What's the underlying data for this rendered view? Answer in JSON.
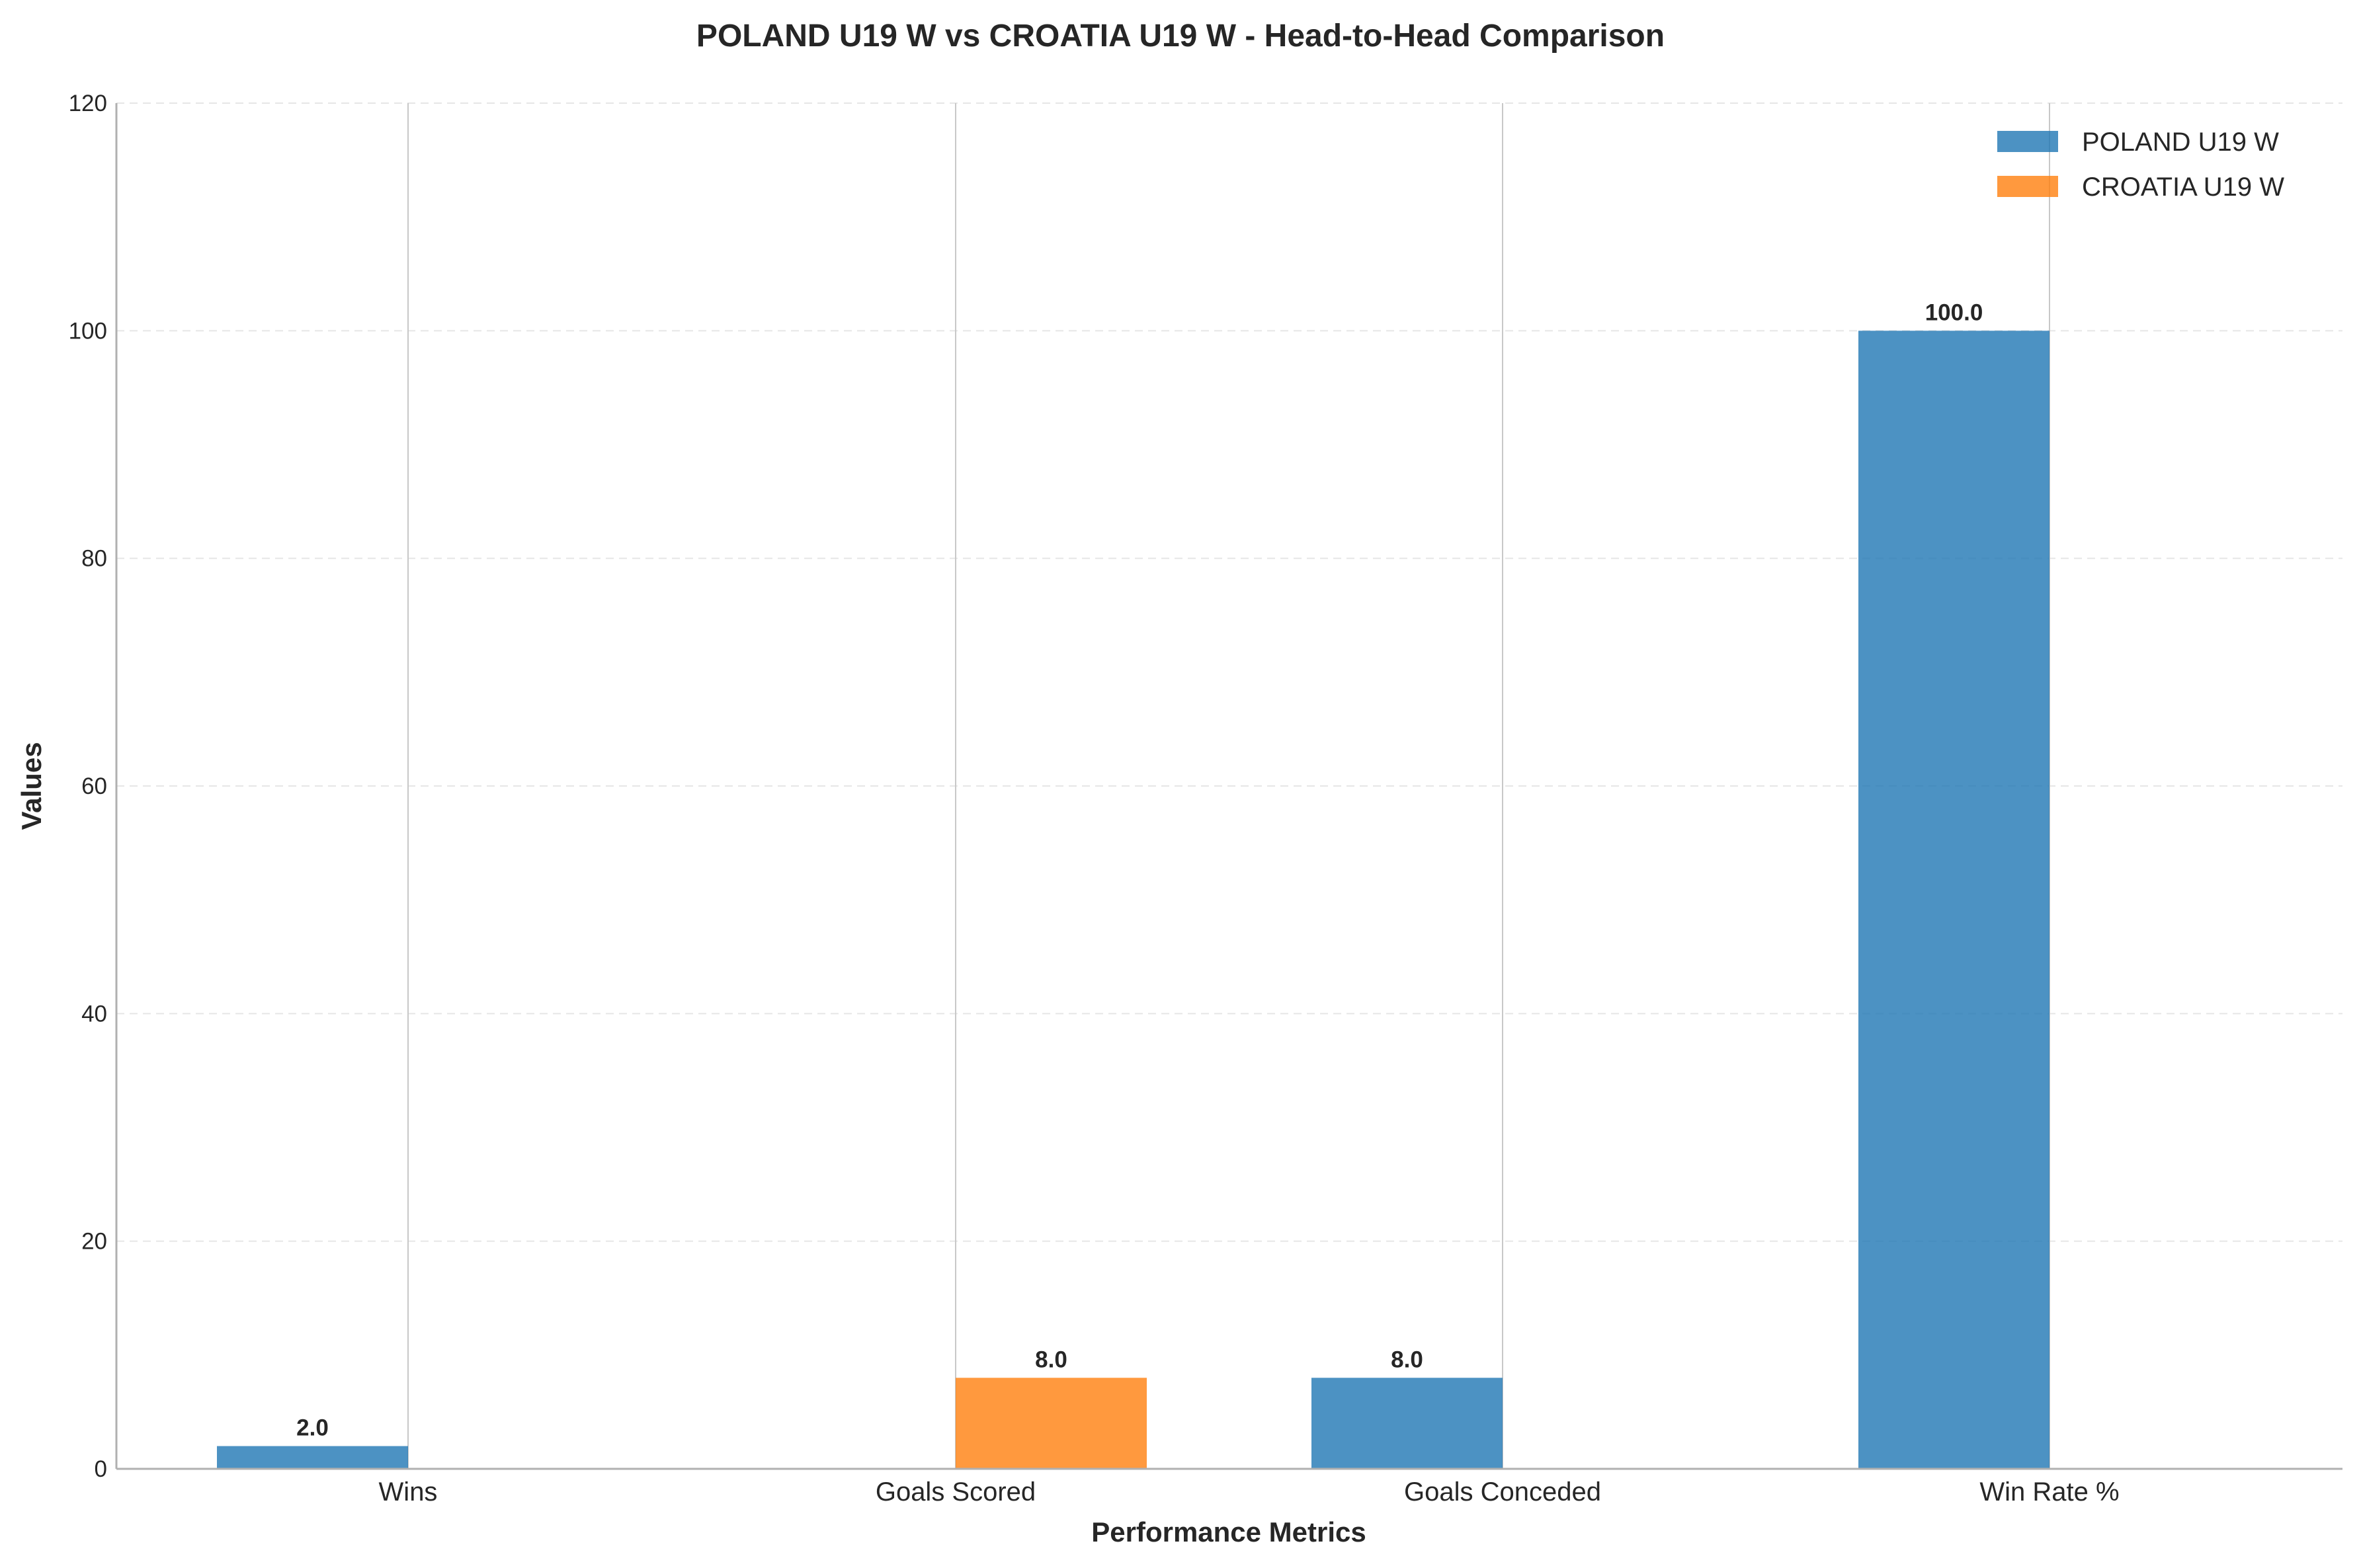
{
  "chart_data": {
    "type": "bar",
    "title": "POLAND U19 W vs CROATIA U19 W - Head-to-Head Comparison",
    "xlabel": "Performance Metrics",
    "ylabel": "Values",
    "categories": [
      "Wins",
      "Goals Scored",
      "Goals Conceded",
      "Win Rate %"
    ],
    "ylim": [
      0,
      120
    ],
    "yticks": [
      0,
      20,
      40,
      60,
      80,
      100,
      120
    ],
    "grid": true,
    "legend_position": "top-right",
    "series": [
      {
        "name": "POLAND U19 W",
        "color": "#1f77b4",
        "values": [
          2.0,
          0,
          8.0,
          100.0
        ],
        "labels": [
          "2.0",
          "",
          "8.0",
          "100.0"
        ]
      },
      {
        "name": "CROATIA U19 W",
        "color": "#ff7f0e",
        "values": [
          0,
          8.0,
          0,
          0
        ],
        "labels": [
          "",
          "8.0",
          "",
          ""
        ]
      }
    ]
  }
}
